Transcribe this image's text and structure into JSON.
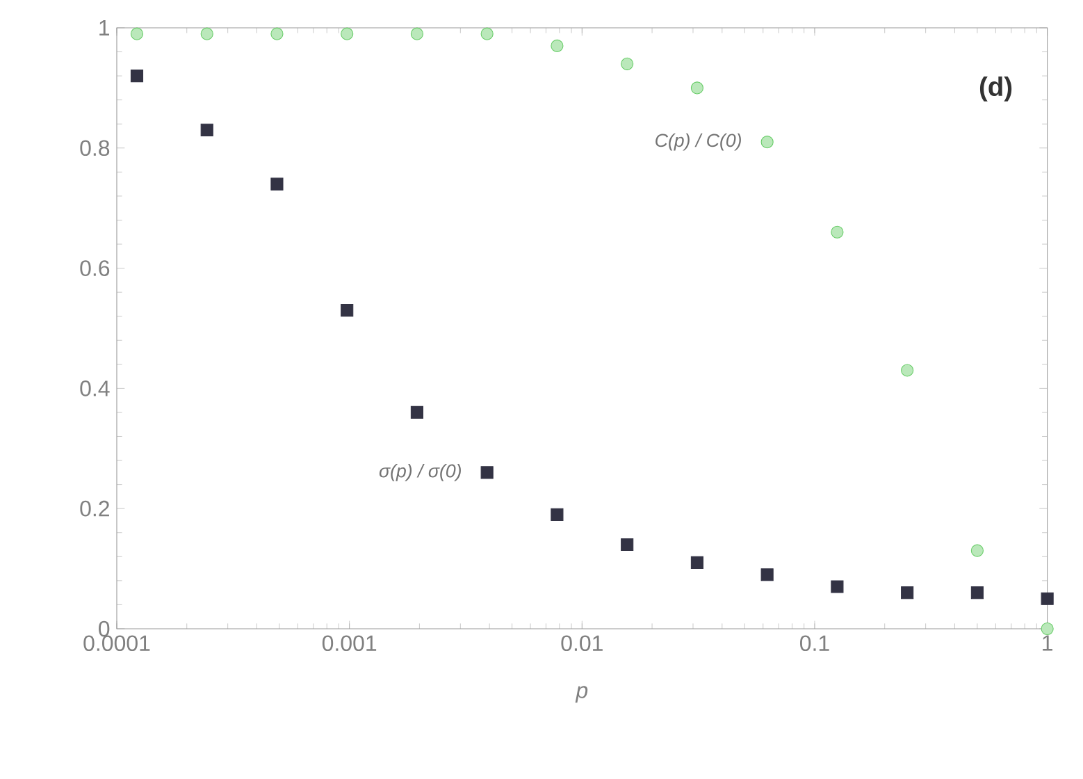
{
  "chart_data": {
    "type": "scatter",
    "xlabel": "p",
    "log": "x",
    "xlim": [
      0.0001,
      1
    ],
    "ylim": [
      0,
      1
    ],
    "xticks": [
      0.0001,
      0.001,
      0.01,
      0.1,
      1
    ],
    "yticks": [
      0,
      0.2,
      0.4,
      0.6,
      0.8,
      1
    ],
    "grid": false,
    "x": [
      0.0001220703125,
      0.000244140625,
      0.00048828125,
      0.0009765625,
      0.001953125,
      0.00390625,
      0.0078125,
      0.015625,
      0.03125,
      0.0625,
      0.125,
      0.25,
      0.5,
      1
    ],
    "series": [
      {
        "name": "C(p) / C(0)",
        "color": "#66cc66",
        "marker": "circle",
        "values": [
          0.99,
          0.99,
          0.99,
          0.99,
          0.99,
          0.99,
          0.97,
          0.94,
          0.9,
          0.81,
          0.66,
          0.43,
          0.13,
          0.0
        ]
      },
      {
        "name": "σ(p) / σ(0)",
        "color": "#333344",
        "marker": "square",
        "values": [
          0.92,
          0.83,
          0.74,
          0.53,
          0.36,
          0.26,
          0.19,
          0.14,
          0.11,
          0.09,
          0.07,
          0.06,
          0.06,
          0.05
        ]
      }
    ],
    "annotations": [
      "(d)"
    ]
  }
}
